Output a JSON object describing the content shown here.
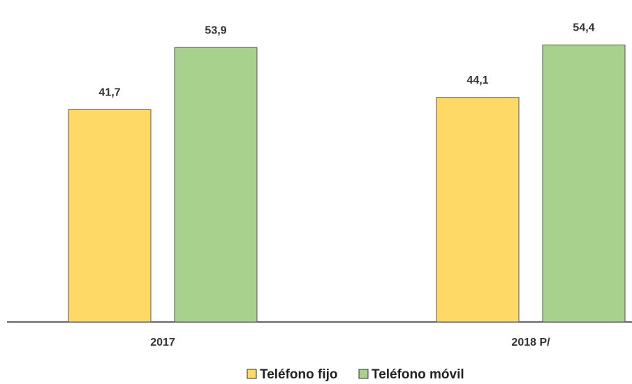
{
  "chart_data": {
    "type": "bar",
    "categories": [
      "2017",
      "2018 P/"
    ],
    "series": [
      {
        "name": "Teléfono fijo",
        "color": "#FFD966",
        "values": [
          41.7,
          44.1
        ],
        "value_labels": [
          "41,7",
          "44,1"
        ]
      },
      {
        "name": "Teléfono móvil",
        "color": "#A9D18E",
        "values": [
          53.9,
          54.4
        ],
        "value_labels": [
          "53,9",
          "54,4"
        ]
      }
    ],
    "ylim": [
      0,
      62
    ],
    "legend": "bottom"
  }
}
